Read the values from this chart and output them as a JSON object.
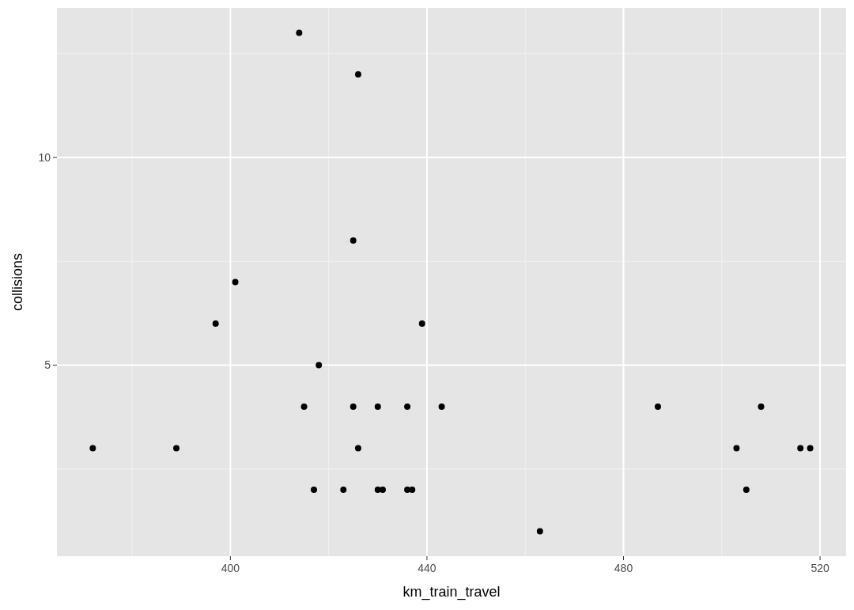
{
  "chart_data": {
    "type": "scatter",
    "xlabel": "km_train_travel",
    "ylabel": "collisions",
    "x": [
      372,
      389,
      397,
      401,
      414,
      415,
      417,
      418,
      423,
      425,
      425,
      426,
      426,
      430,
      430,
      431,
      436,
      436,
      437,
      439,
      443,
      463,
      487,
      503,
      505,
      508,
      516,
      518
    ],
    "values": [
      3,
      3,
      6,
      7,
      13,
      4,
      2,
      5,
      2,
      8,
      4,
      12,
      3,
      4,
      2,
      2,
      4,
      2,
      2,
      6,
      4,
      1,
      4,
      3,
      2,
      4,
      3,
      3
    ],
    "color": "#000000",
    "marker": "circle",
    "xlim": [
      364.7,
      525.3
    ],
    "xticks": [
      400,
      440,
      480,
      520
    ],
    "ylim": [
      0.4,
      13.6
    ],
    "yticks": [
      5,
      10
    ],
    "grid": true
  }
}
